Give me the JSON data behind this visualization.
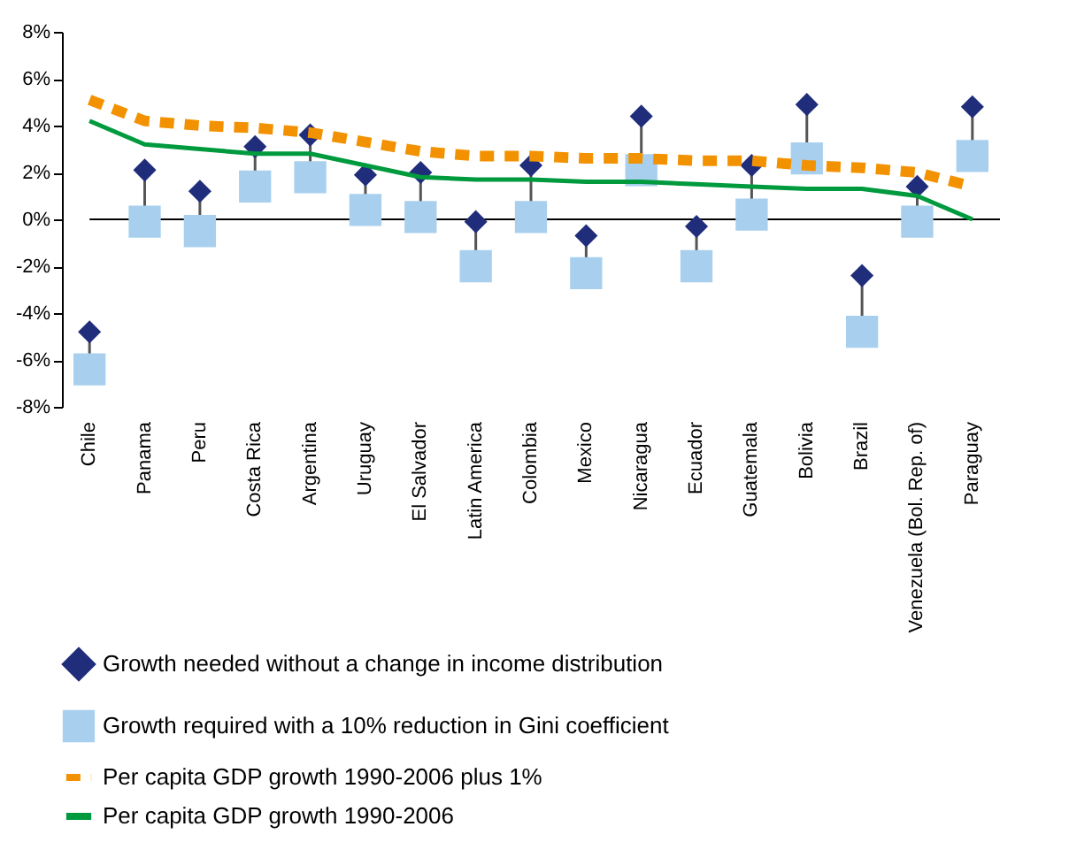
{
  "chart_data": {
    "type": "scatter",
    "categories": [
      "Chile",
      "Panama",
      "Peru",
      "Costa Rica",
      "Argentina",
      "Uruguay",
      "El Salvador",
      "Latin America",
      "Colombia",
      "Mexico",
      "Nicaragua",
      "Ecuador",
      "Guatemala",
      "Bolivia",
      "Brazil",
      "Venezuela (Bol. Rep. of)",
      "Paraguay"
    ],
    "series": [
      {
        "name": "Growth needed without a change in income distribution",
        "marker": "diamond",
        "color": "#1f2d7b",
        "values": [
          -4.8,
          2.1,
          1.2,
          3.1,
          3.6,
          1.9,
          2.0,
          -0.1,
          2.3,
          -0.7,
          4.4,
          -0.3,
          2.3,
          4.9,
          -2.4,
          1.4,
          4.8
        ]
      },
      {
        "name": "Growth required with a 10% reduction in Gini coefficient",
        "marker": "square",
        "color": "#a8d0ee",
        "values": [
          -6.4,
          -0.1,
          -0.5,
          1.4,
          1.8,
          0.4,
          0.1,
          -2.0,
          0.1,
          -2.3,
          2.1,
          -2.0,
          0.2,
          2.6,
          -4.8,
          -0.1,
          2.7
        ]
      },
      {
        "name": "Per capita GDP growth 1990-2006 plus 1%",
        "type": "line",
        "line_style": "dashed",
        "color": "#f39200",
        "values": [
          5.1,
          4.2,
          4.0,
          3.9,
          3.7,
          3.3,
          2.9,
          2.7,
          2.7,
          2.6,
          2.6,
          2.5,
          2.5,
          2.3,
          2.2,
          2.0,
          1.4
        ]
      },
      {
        "name": "Per capita GDP growth 1990-2006",
        "type": "line",
        "line_style": "solid",
        "color": "#009a3e",
        "values": [
          4.2,
          3.2,
          3.0,
          2.8,
          2.8,
          2.3,
          1.8,
          1.7,
          1.7,
          1.6,
          1.6,
          1.5,
          1.4,
          1.3,
          1.3,
          1.0,
          0.0
        ]
      }
    ],
    "ylim": [
      -8,
      8
    ],
    "yticks": [
      {
        "value": -8,
        "label": "-8%"
      },
      {
        "value": -6,
        "label": "-6%"
      },
      {
        "value": -4,
        "label": "-4%"
      },
      {
        "value": -2,
        "label": "-2%"
      },
      {
        "value": 0,
        "label": "0%"
      },
      {
        "value": 2,
        "label": "2%"
      },
      {
        "value": 4,
        "label": "4%"
      },
      {
        "value": 6,
        "label": "6%"
      },
      {
        "value": 8,
        "label": "8%"
      }
    ],
    "ref_lines": [
      {
        "axis": "y",
        "value": 0,
        "color": "#000000"
      }
    ],
    "grid": false,
    "legend": "bottom"
  }
}
